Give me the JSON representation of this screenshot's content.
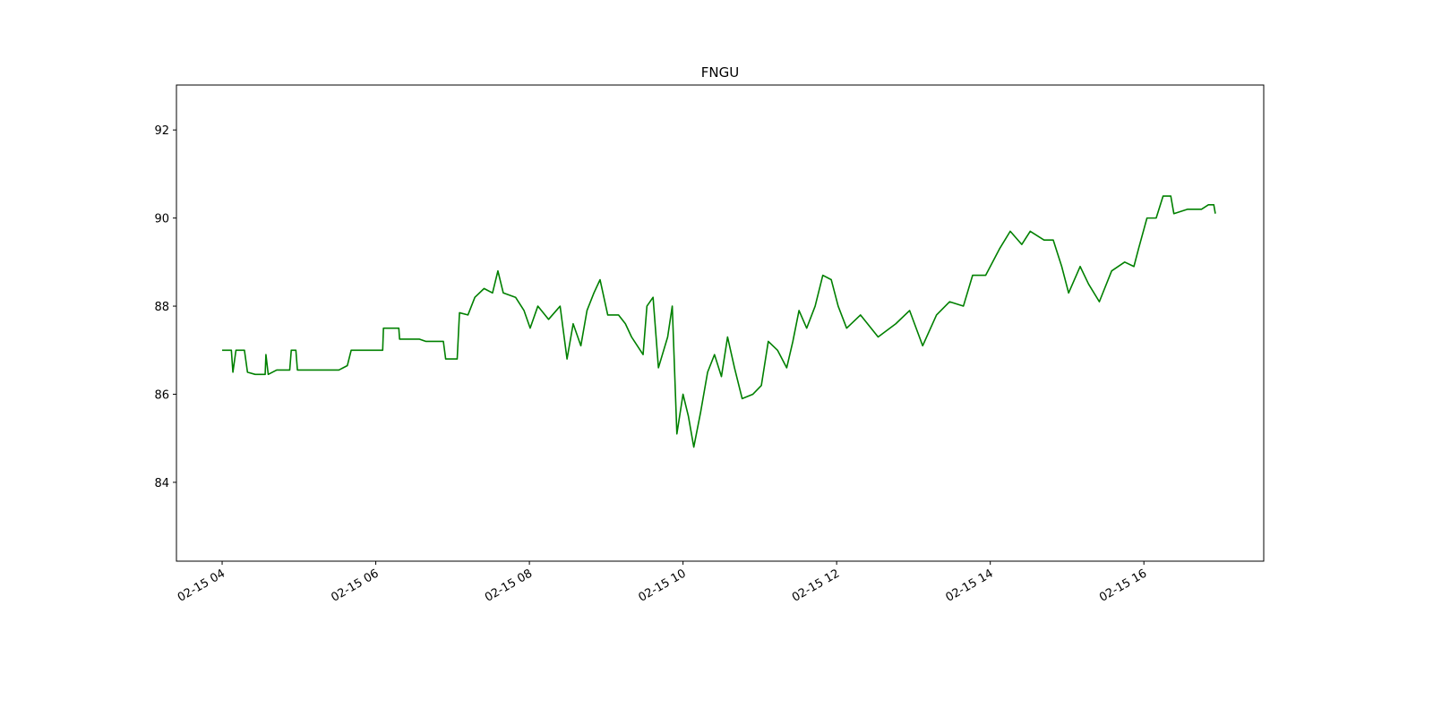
{
  "chart_data": {
    "type": "line",
    "title": "FNGU",
    "x": [
      4.0,
      4.12,
      4.14,
      4.18,
      4.29,
      4.33,
      4.43,
      4.56,
      4.57,
      4.6,
      4.71,
      4.88,
      4.9,
      4.96,
      4.98,
      5.52,
      5.63,
      5.68,
      6.09,
      6.1,
      6.3,
      6.31,
      6.57,
      6.65,
      6.88,
      6.91,
      7.06,
      7.09,
      7.2,
      7.29,
      7.41,
      7.52,
      7.59,
      7.66,
      7.82,
      7.93,
      8.01,
      8.11,
      8.25,
      8.4,
      8.49,
      8.57,
      8.67,
      8.75,
      8.84,
      8.92,
      9.02,
      9.16,
      9.25,
      9.33,
      9.48,
      9.53,
      9.61,
      9.68,
      9.8,
      9.86,
      9.92,
      10.0,
      10.07,
      10.14,
      10.23,
      10.32,
      10.41,
      10.5,
      10.58,
      10.67,
      10.77,
      10.91,
      11.02,
      11.11,
      11.23,
      11.35,
      11.43,
      11.51,
      11.61,
      11.72,
      11.82,
      11.93,
      12.02,
      12.13,
      12.31,
      12.54,
      12.77,
      12.95,
      13.12,
      13.3,
      13.47,
      13.65,
      13.77,
      13.94,
      14.12,
      14.26,
      14.41,
      14.52,
      14.7,
      14.82,
      14.93,
      15.02,
      15.17,
      15.28,
      15.42,
      15.58,
      15.75,
      15.87,
      15.93,
      16.04,
      16.16,
      16.25,
      16.35,
      16.39,
      16.57,
      16.75,
      16.84,
      16.91,
      16.93
    ],
    "series": [
      {
        "name": "FNGU",
        "color": "#008000",
        "values": [
          87.0,
          87.0,
          86.5,
          87.0,
          87.0,
          86.5,
          86.45,
          86.45,
          86.9,
          86.45,
          86.55,
          86.55,
          87.0,
          87.0,
          86.55,
          86.55,
          86.65,
          87.0,
          87.0,
          87.5,
          87.5,
          87.25,
          87.25,
          87.2,
          87.2,
          86.8,
          86.8,
          87.85,
          87.8,
          88.2,
          88.4,
          88.3,
          88.8,
          88.3,
          88.2,
          87.9,
          87.5,
          88.0,
          87.7,
          88.0,
          86.8,
          87.6,
          87.1,
          87.9,
          88.3,
          88.6,
          87.8,
          87.8,
          87.6,
          87.3,
          86.9,
          88.0,
          88.2,
          86.6,
          87.3,
          88.0,
          85.1,
          86.0,
          85.5,
          84.8,
          85.6,
          86.5,
          86.9,
          86.4,
          87.3,
          86.6,
          85.9,
          86.0,
          86.2,
          87.2,
          87.0,
          86.6,
          87.2,
          87.9,
          87.5,
          88.0,
          88.7,
          88.6,
          88.0,
          87.5,
          87.8,
          87.3,
          87.6,
          87.9,
          87.1,
          87.8,
          88.1,
          88.0,
          88.7,
          88.7,
          89.3,
          89.7,
          89.4,
          89.7,
          89.5,
          89.5,
          88.9,
          88.3,
          88.9,
          88.5,
          88.1,
          88.8,
          89.0,
          88.9,
          89.3,
          90.0,
          90.0,
          90.5,
          90.5,
          90.1,
          90.2,
          90.2,
          90.3,
          90.3,
          90.1
        ]
      }
    ],
    "xlim": [
      3.405,
      17.56
    ],
    "xticks": [
      {
        "value": 4,
        "label": "02-15 04"
      },
      {
        "value": 6,
        "label": "02-15 06"
      },
      {
        "value": 8,
        "label": "02-15 08"
      },
      {
        "value": 10,
        "label": "02-15 10"
      },
      {
        "value": 12,
        "label": "02-15 12"
      },
      {
        "value": 14,
        "label": "02-15 14"
      },
      {
        "value": 16,
        "label": "02-15 16"
      }
    ],
    "ylim": [
      82.21,
      93.02
    ],
    "yticks": [
      84,
      86,
      88,
      90,
      92
    ],
    "grid": false
  }
}
